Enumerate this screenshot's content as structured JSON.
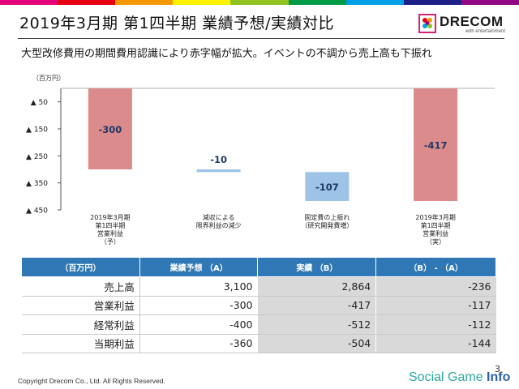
{
  "slide": {
    "title": "2019年3月期 第1四半期 業績予想/実績対比",
    "subtitle": "大型改修費用の期間費用認識により赤字幅が拡大。イベントの不調から売上高も下振れ",
    "copyright": "Copyright Drecom Co., Ltd. All Rights Reserved.",
    "page_number": "3"
  },
  "logo": {
    "name": "DRECOM",
    "tagline": "with entertainment",
    "stripe_colors": [
      "#e4007f",
      "#e60012",
      "#f39800",
      "#fff100",
      "#8fc31f",
      "#009944",
      "#00a0e9",
      "#1d2088",
      "#920783"
    ]
  },
  "watermark": {
    "text_a": "Social Game",
    "text_b": "Info"
  },
  "chart_data": {
    "type": "bar",
    "subtype": "waterfall",
    "unit_label": "（百万円）",
    "ylim": [
      -450,
      0
    ],
    "y_ticks": [
      {
        "value": -50,
        "label": "▲ 50"
      },
      {
        "value": -150,
        "label": "▲ 150"
      },
      {
        "value": -250,
        "label": "▲ 250"
      },
      {
        "value": -350,
        "label": "▲ 350"
      },
      {
        "value": -450,
        "label": "▲ 450"
      }
    ],
    "bars": [
      {
        "category": [
          "2019年3月期",
          "第1四半期",
          "営業利益",
          "（予）"
        ],
        "start": 0,
        "end": -300,
        "value_label": "-300",
        "color": "#db8b8b"
      },
      {
        "category": [
          "減収による",
          "限界利益の減少"
        ],
        "start": -300,
        "end": -310,
        "value_label": "-10",
        "color": "#9dc3e6"
      },
      {
        "category": [
          "固定費の上振れ",
          "（研究開発費増）"
        ],
        "start": -310,
        "end": -417,
        "value_label": "-107",
        "color": "#9dc3e6"
      },
      {
        "category": [
          "2019年3月期",
          "第1四半期",
          "営業利益",
          "（実）"
        ],
        "start": 0,
        "end": -417,
        "value_label": "-417",
        "color": "#db8b8b"
      }
    ],
    "grid": false
  },
  "table": {
    "headers": [
      "（百万円）",
      "業績予想 （A）",
      "実績 （B）",
      "（B） - （A）"
    ],
    "rows": [
      {
        "label": "売上高",
        "forecast": "3,100",
        "actual": "2,864",
        "diff": "-236"
      },
      {
        "label": "営業利益",
        "forecast": "-300",
        "actual": "-417",
        "diff": "-117"
      },
      {
        "label": "経常利益",
        "forecast": "-400",
        "actual": "-512",
        "diff": "-112"
      },
      {
        "label": "当期利益",
        "forecast": "-360",
        "actual": "-504",
        "diff": "-144"
      }
    ]
  }
}
